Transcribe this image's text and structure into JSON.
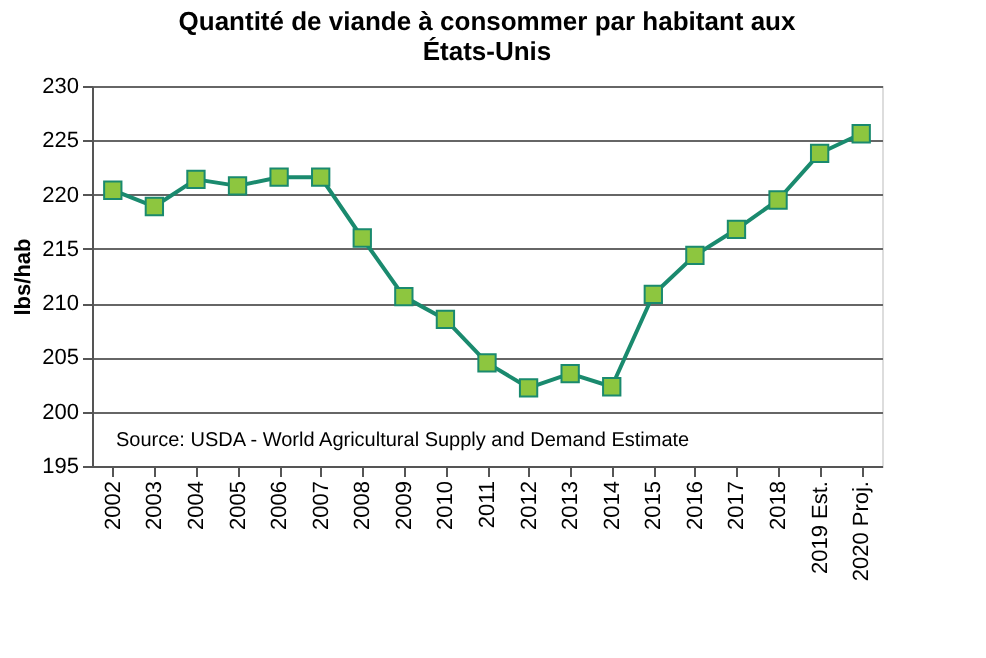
{
  "chart_data": {
    "type": "line",
    "title": [
      "Quantité de viande à consommer par habitant aux",
      "États-Unis"
    ],
    "ylabel": "lbs/hab",
    "categories": [
      "2002",
      "2003",
      "2004",
      "2005",
      "2006",
      "2007",
      "2008",
      "2009",
      "2010",
      "2011",
      "2012",
      "2013",
      "2014",
      "2015",
      "2016",
      "2017",
      "2018",
      "2019 Est.",
      "2020 Proj."
    ],
    "series": [
      {
        "color": "#1a8a6e",
        "values": [
          220.4,
          218.9,
          221.4,
          220.8,
          221.6,
          221.6,
          216.0,
          210.6,
          208.5,
          204.5,
          202.2,
          203.5,
          202.3,
          210.8,
          214.4,
          216.8,
          219.5,
          223.8,
          225.6
        ]
      }
    ],
    "ylim": [
      195,
      230
    ],
    "yticks": [
      195,
      200,
      205,
      210,
      215,
      220,
      225,
      230
    ],
    "grid": "y",
    "marker": "square",
    "line_style": "solid",
    "annotations": [
      "Source:  USDA - World Agricultural Supply and Demand Estimate"
    ]
  }
}
